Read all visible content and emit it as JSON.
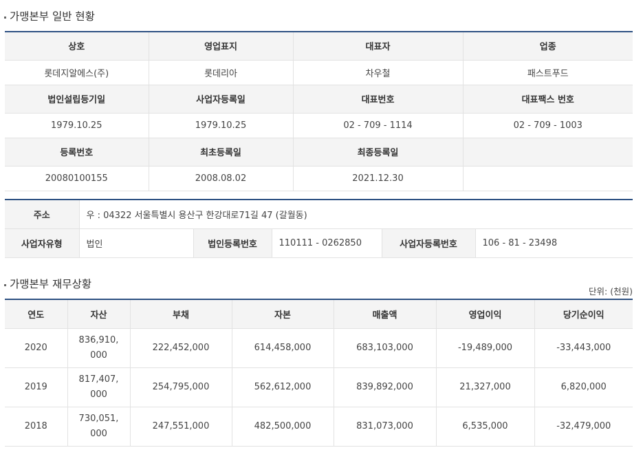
{
  "section1": {
    "title": "가맹본부 일반 현황"
  },
  "general": {
    "row1_headers": [
      "상호",
      "영업표지",
      "대표자",
      "업종"
    ],
    "row1_values": [
      "롯데지알에스(주)",
      "롯데리아",
      "차우철",
      "패스트푸드"
    ],
    "row2_headers": [
      "법인설립등기일",
      "사업자등록일",
      "대표번호",
      "대표팩스 번호"
    ],
    "row2_values": [
      "1979.10.25",
      "1979.10.25",
      "02 - 709 - 1114",
      "02 - 709 - 1003"
    ],
    "row3_headers": [
      "등록번호",
      "최초등록일",
      "최종등록일",
      ""
    ],
    "row3_values": [
      "20080100155",
      "2008.08.02",
      "2021.12.30",
      ""
    ]
  },
  "address": {
    "address_label": "주소",
    "address_value": "우 : 04322 서울특별시 용산구 한강대로71길 47 (갈월동)",
    "biz_type_label": "사업자유형",
    "biz_type_value": "법인",
    "corp_reg_label": "법인등록번호",
    "corp_reg_value": "110111 - 0262850",
    "biz_reg_label": "사업자등록번호",
    "biz_reg_value": "106 - 81 - 23498"
  },
  "section2": {
    "title": "가맹본부 재무상황",
    "unit": "단위: (천원)"
  },
  "finance": {
    "headers": [
      "연도",
      "자산",
      "부채",
      "자본",
      "매출액",
      "영업이익",
      "당기순이익"
    ],
    "rows": [
      [
        "2020",
        "836,910,000",
        "222,452,000",
        "614,458,000",
        "683,103,000",
        "-19,489,000",
        "-33,443,000"
      ],
      [
        "2019",
        "817,407,000",
        "254,795,000",
        "562,612,000",
        "839,892,000",
        "21,327,000",
        "6,820,000"
      ],
      [
        "2018",
        "730,051,000",
        "247,551,000",
        "482,500,000",
        "831,073,000",
        "6,535,000",
        "-32,479,000"
      ]
    ]
  }
}
